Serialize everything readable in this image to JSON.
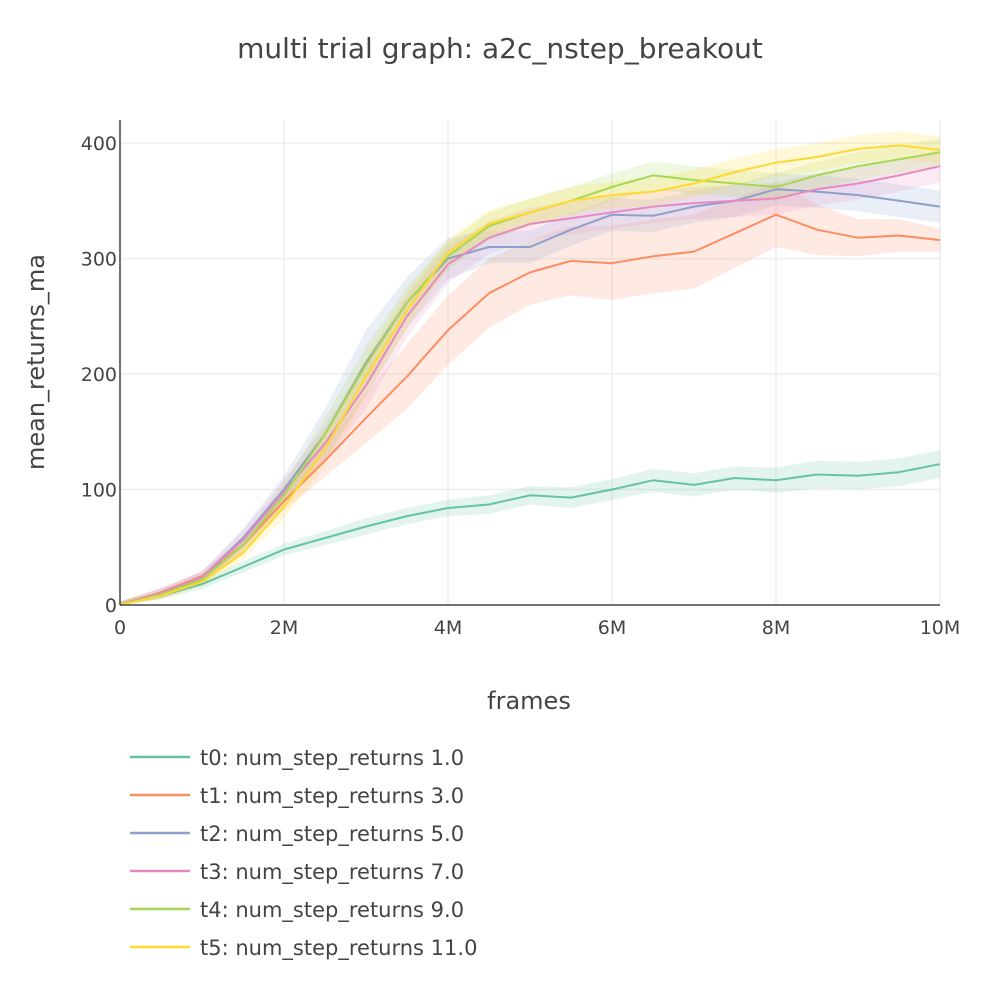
{
  "chart_data": {
    "type": "line",
    "title": "multi trial graph: a2c_nstep_breakout",
    "xlabel": "frames",
    "ylabel": "mean_returns_ma",
    "xlim": [
      0,
      10000000
    ],
    "ylim": [
      0,
      420
    ],
    "x_ticks": [
      0,
      2000000,
      4000000,
      6000000,
      8000000,
      10000000
    ],
    "x_tick_labels": [
      "0",
      "2M",
      "4M",
      "6M",
      "8M",
      "10M"
    ],
    "y_ticks": [
      0,
      100,
      200,
      300,
      400
    ],
    "y_tick_labels": [
      "0",
      "100",
      "200",
      "300",
      "400"
    ],
    "grid": true,
    "legend_position": "bottom",
    "x": [
      0,
      500000,
      1000000,
      1500000,
      2000000,
      2500000,
      3000000,
      3500000,
      4000000,
      4500000,
      5000000,
      5500000,
      6000000,
      6500000,
      7000000,
      7500000,
      8000000,
      8500000,
      9000000,
      9500000,
      10000000
    ],
    "series": [
      {
        "name": "t0: num_step_returns 1.0",
        "color": "#66c2a5",
        "values": [
          0,
          8,
          18,
          33,
          48,
          58,
          68,
          77,
          84,
          87,
          95,
          93,
          100,
          108,
          104,
          110,
          108,
          113,
          112,
          115,
          122
        ],
        "band": [
          3,
          3,
          4,
          5,
          5,
          6,
          7,
          7,
          7,
          8,
          8,
          9,
          9,
          10,
          10,
          10,
          11,
          12,
          12,
          12,
          12
        ]
      },
      {
        "name": "t1: num_step_returns 3.0",
        "color": "#fc8d62",
        "values": [
          0,
          11,
          25,
          52,
          90,
          125,
          162,
          198,
          238,
          270,
          288,
          298,
          296,
          302,
          306,
          322,
          338,
          325,
          318,
          320,
          316
        ],
        "band": [
          3,
          4,
          4,
          6,
          8,
          14,
          22,
          28,
          30,
          30,
          28,
          30,
          32,
          32,
          32,
          30,
          28,
          22,
          16,
          14,
          10
        ]
      },
      {
        "name": "t2: num_step_returns 5.0",
        "color": "#8da0cb",
        "values": [
          0,
          10,
          24,
          58,
          100,
          148,
          210,
          262,
          300,
          310,
          310,
          325,
          338,
          337,
          345,
          350,
          360,
          358,
          355,
          350,
          345
        ],
        "band": [
          3,
          4,
          5,
          8,
          12,
          22,
          28,
          22,
          18,
          14,
          14,
          14,
          14,
          14,
          14,
          14,
          14,
          14,
          14,
          14,
          14
        ]
      },
      {
        "name": "t3: num_step_returns 7.0",
        "color": "#e78ac3",
        "values": [
          0,
          10,
          24,
          56,
          98,
          140,
          190,
          250,
          295,
          318,
          330,
          335,
          340,
          345,
          348,
          350,
          352,
          360,
          365,
          372,
          380
        ],
        "band": [
          3,
          4,
          5,
          8,
          10,
          16,
          20,
          18,
          16,
          14,
          14,
          14,
          14,
          14,
          14,
          14,
          14,
          14,
          14,
          14,
          14
        ]
      },
      {
        "name": "t4: num_step_returns 9.0",
        "color": "#a6d854",
        "values": [
          0,
          9,
          22,
          52,
          95,
          148,
          208,
          262,
          302,
          328,
          340,
          350,
          362,
          372,
          368,
          365,
          362,
          372,
          380,
          386,
          392
        ],
        "band": [
          3,
          3,
          4,
          6,
          10,
          14,
          16,
          14,
          12,
          12,
          12,
          12,
          12,
          12,
          12,
          12,
          12,
          12,
          12,
          12,
          12
        ]
      },
      {
        "name": "t5: num_step_returns 11.0",
        "color": "#ffd92f",
        "values": [
          0,
          8,
          20,
          45,
          85,
          135,
          198,
          255,
          305,
          330,
          340,
          350,
          355,
          358,
          365,
          375,
          383,
          388,
          395,
          398,
          394
        ],
        "band": [
          3,
          3,
          4,
          6,
          10,
          14,
          18,
          16,
          12,
          12,
          12,
          12,
          12,
          12,
          12,
          12,
          12,
          12,
          12,
          12,
          12
        ]
      }
    ]
  }
}
